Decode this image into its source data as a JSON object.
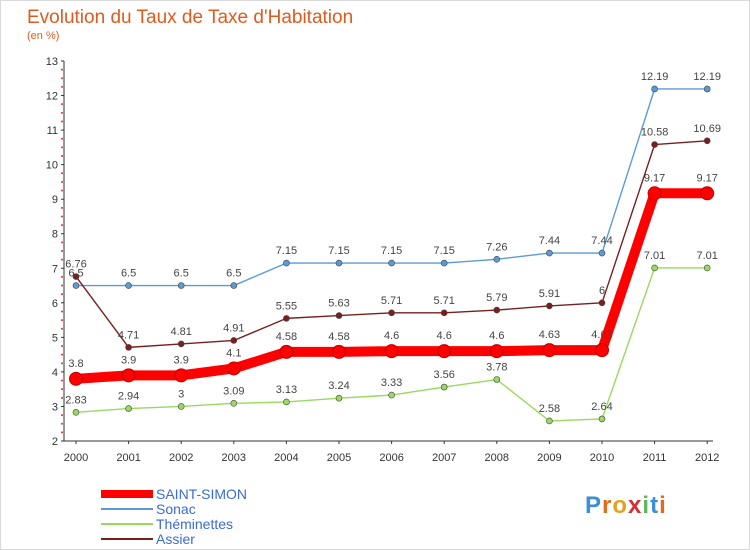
{
  "title": "Evolution du Taux de Taxe d'Habitation",
  "unit_label": "(en %)",
  "brand": "Proxiti",
  "chart_data": {
    "type": "line",
    "title": "Evolution du Taux de Taxe d'Habitation",
    "ylabel": "(en %)",
    "x": [
      "2000",
      "2001",
      "2002",
      "2003",
      "2004",
      "2005",
      "2006",
      "2007",
      "2008",
      "2009",
      "2010",
      "2011",
      "2012"
    ],
    "ylim": [
      2,
      13
    ],
    "yticks": [
      "2",
      "3",
      "4",
      "5",
      "6",
      "7",
      "8",
      "9",
      "10",
      "11",
      "12",
      "13"
    ],
    "grid": false,
    "legend_position": "bottom-left",
    "series": [
      {
        "name": "SAINT-SIMON",
        "color": "#ff0000",
        "values": [
          3.8,
          3.9,
          3.9,
          4.1,
          4.58,
          4.58,
          4.6,
          4.6,
          4.6,
          4.63,
          4.63,
          9.17,
          9.17
        ],
        "labels": [
          "3.8",
          "3.9",
          "3.9",
          "4.1",
          "4.58",
          "4.58",
          "4.6",
          "4.6",
          "4.6",
          "4.63",
          "4.63",
          "9.17",
          "9.17"
        ]
      },
      {
        "name": "Sonac",
        "color": "#5b9bd5",
        "values": [
          6.5,
          6.5,
          6.5,
          6.5,
          7.15,
          7.15,
          7.15,
          7.15,
          7.26,
          7.44,
          7.44,
          12.19,
          12.19
        ],
        "labels": [
          "6.5",
          "6.5",
          "6.5",
          "6.5",
          "7.15",
          "7.15",
          "7.15",
          "7.15",
          "7.26",
          "7.44",
          "7.44",
          "12.19",
          "12.19"
        ]
      },
      {
        "name": "Théminettes",
        "color": "#99d95f",
        "values": [
          2.83,
          2.94,
          3,
          3.09,
          3.13,
          3.24,
          3.33,
          3.56,
          3.78,
          2.58,
          2.64,
          7.01,
          7.01
        ],
        "labels": [
          "2.83",
          "2.94",
          "3",
          "3.09",
          "3.13",
          "3.24",
          "3.33",
          "3.56",
          "3.78",
          "2.58",
          "2.64",
          "7.01",
          "7.01"
        ]
      },
      {
        "name": "Assier",
        "color": "#7a1f1f",
        "values": [
          6.76,
          4.71,
          4.81,
          4.91,
          5.55,
          5.63,
          5.71,
          5.71,
          5.79,
          5.91,
          6,
          10.58,
          10.69
        ],
        "labels": [
          "6.76",
          "4.71",
          "4.81",
          "4.91",
          "5.55",
          "5.63",
          "5.71",
          "5.71",
          "5.79",
          "5.91",
          "6",
          "10.58",
          "10.69"
        ]
      }
    ]
  }
}
